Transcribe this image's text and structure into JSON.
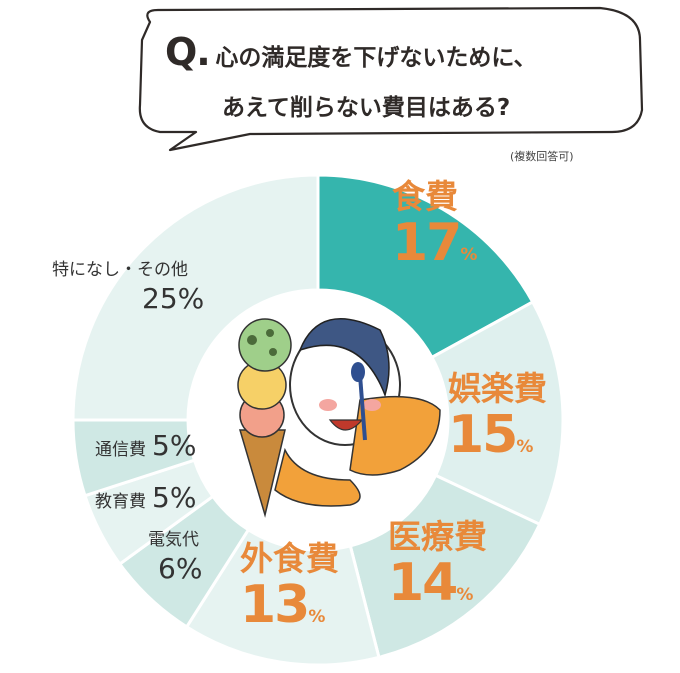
{
  "question": {
    "prefix": "Q.",
    "line1": "心の満足度を下げないために、",
    "line2": "あえて削らない費目はある?"
  },
  "note": "(複数回答可)",
  "chart_data": {
    "type": "pie",
    "donut": true,
    "slices": [
      {
        "label": "食費",
        "value": 17,
        "unit": "%",
        "color": "#35b5ad",
        "highlight": true
      },
      {
        "label": "娯楽費",
        "value": 15,
        "unit": "%",
        "color": "#dff0ee",
        "highlight": true
      },
      {
        "label": "医療費",
        "value": 14,
        "unit": "%",
        "color": "#cfe8e4",
        "highlight": true
      },
      {
        "label": "外食費",
        "value": 13,
        "unit": "%",
        "color": "#e6f3f1",
        "highlight": true
      },
      {
        "label": "電気代",
        "value": 6,
        "unit": "%",
        "color": "#cfe8e4",
        "highlight": false
      },
      {
        "label": "教育費",
        "value": 5,
        "unit": "%",
        "color": "#e6f3f1",
        "highlight": false
      },
      {
        "label": "通信費",
        "value": 5,
        "unit": "%",
        "color": "#cfe8e4",
        "highlight": false
      },
      {
        "label": "特になし・その他",
        "value": 25,
        "unit": "%",
        "color": "#e6f3f1",
        "highlight": false
      }
    ]
  }
}
